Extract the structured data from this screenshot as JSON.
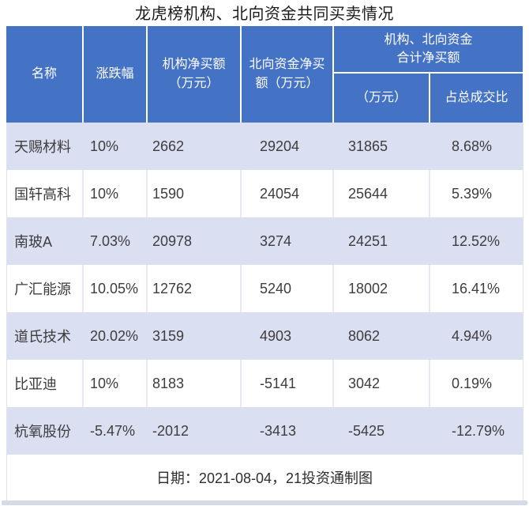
{
  "title": "龙虎榜机构、北向资金共同买卖情况",
  "table": {
    "header": {
      "name": "名称",
      "change": "涨跌幅",
      "inst_line1": "机构净买额",
      "inst_line2": "（万元）",
      "north_line1": "北向资金净买",
      "north_line2": "额（万元）",
      "combined_line1": "机构、北向资金",
      "combined_line2": "合计净买额",
      "combined_sub_amount": "（万元）",
      "combined_sub_ratio": "占总成交比"
    }
  },
  "chart_data": {
    "type": "table",
    "title": "龙虎榜机构、北向资金共同买卖情况",
    "columns": [
      "名称",
      "涨跌幅",
      "机构净买额（万元）",
      "北向资金净买额（万元）",
      "机构、北向资金合计净买额（万元）",
      "机构、北向资金合计净买额占总成交比"
    ],
    "rows": [
      {
        "name": "天赐材料",
        "change": "10%",
        "inst": 2662,
        "north": 29204,
        "total": 31865,
        "ratio": "8.68%"
      },
      {
        "name": "国轩高科",
        "change": "10%",
        "inst": 1590,
        "north": 24054,
        "total": 25644,
        "ratio": "5.39%"
      },
      {
        "name": "南玻A",
        "change": "7.03%",
        "inst": 20978,
        "north": 3274,
        "total": 24251,
        "ratio": "12.52%"
      },
      {
        "name": "广汇能源",
        "change": "10.05%",
        "inst": 12762,
        "north": 5240,
        "total": 18002,
        "ratio": "16.41%"
      },
      {
        "name": "道氏技术",
        "change": "20.02%",
        "inst": 3159,
        "north": 4903,
        "total": 8062,
        "ratio": "4.94%"
      },
      {
        "name": "比亚迪",
        "change": "10%",
        "inst": 8183,
        "north": -5141,
        "total": 3042,
        "ratio": "0.19%"
      },
      {
        "name": "杭氧股份",
        "change": "-5.47%",
        "inst": -2012,
        "north": -3413,
        "total": -5425,
        "ratio": "-12.79%"
      }
    ],
    "footnote": "日期：2021-08-04，21投资通制图",
    "layout": {
      "header_bg": "#4472c4",
      "header_text": "#ffffff",
      "alt_row_bg": "#dbdff2",
      "row_bg": "#ffffff",
      "body_text": "#3d3d3d",
      "grid": "alternating row shading, white column separators in header"
    }
  },
  "footer": {
    "text": "日期：2021-08-04，21投资通制图"
  }
}
